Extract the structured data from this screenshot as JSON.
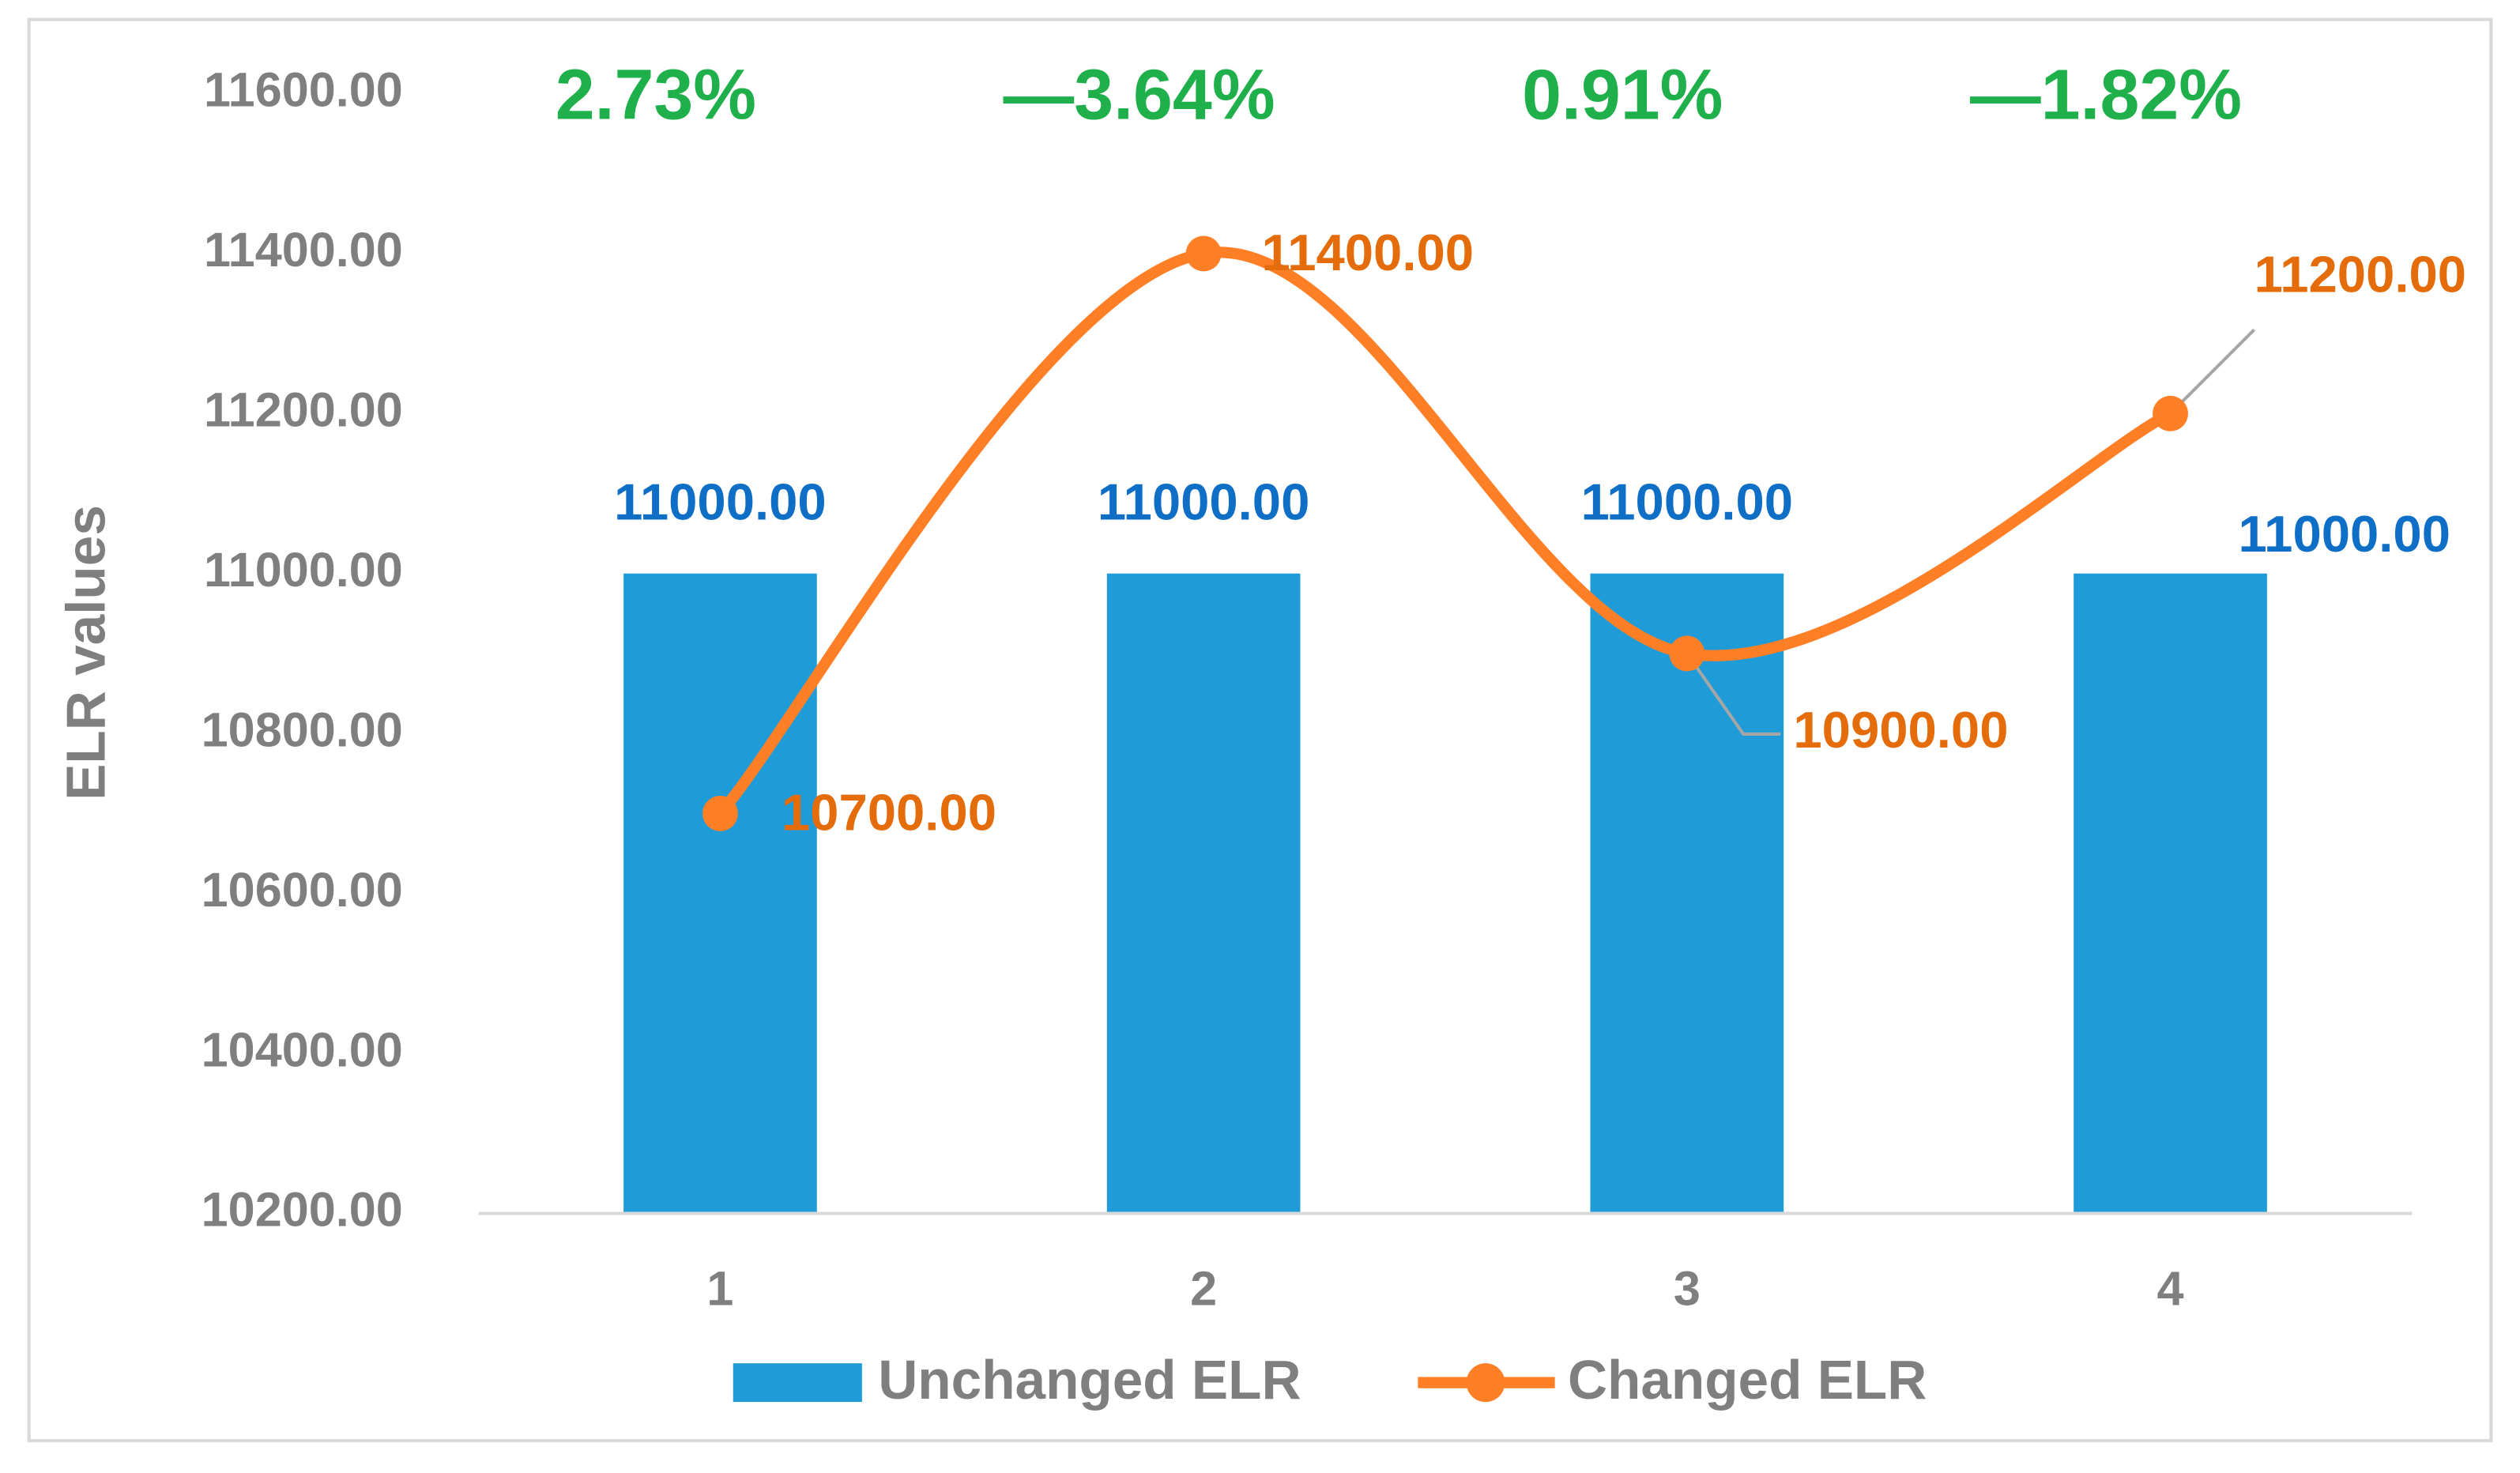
{
  "chart_data": {
    "type": "bar_line",
    "y_label": "ELR values",
    "categories": [
      "1",
      "2",
      "3",
      "4"
    ],
    "annotations": [
      "2.73%",
      "—3.64%",
      "0.91%",
      "—1.82%"
    ],
    "series": [
      {
        "name": "Unchanged ELR",
        "type": "bar",
        "color": "#1f9bd7",
        "label_color": "#0f6fc6",
        "values": [
          11000,
          11000,
          11000,
          11000
        ],
        "value_labels": [
          "11000.00",
          "11000.00",
          "11000.00",
          "11000.00"
        ]
      },
      {
        "name": "Changed ELR",
        "type": "line",
        "smooth": true,
        "color": "#ff7f27",
        "label_color": "#e46c0a",
        "values": [
          10700,
          11400,
          10900,
          11200
        ],
        "value_labels": [
          "10700.00",
          "11400.00",
          "10900.00",
          "11200.00"
        ]
      }
    ],
    "ylim": [
      10200,
      11600
    ],
    "yticks": [
      {
        "value": 10200,
        "label": "10200.00"
      },
      {
        "value": 10400,
        "label": "10400.00"
      },
      {
        "value": 10600,
        "label": "10600.00"
      },
      {
        "value": 10800,
        "label": "10800.00"
      },
      {
        "value": 11000,
        "label": "11000.00"
      },
      {
        "value": 11200,
        "label": "11200.00"
      },
      {
        "value": 11400,
        "label": "11400.00"
      },
      {
        "value": 11600,
        "label": "11600.00"
      }
    ],
    "grid": false
  }
}
